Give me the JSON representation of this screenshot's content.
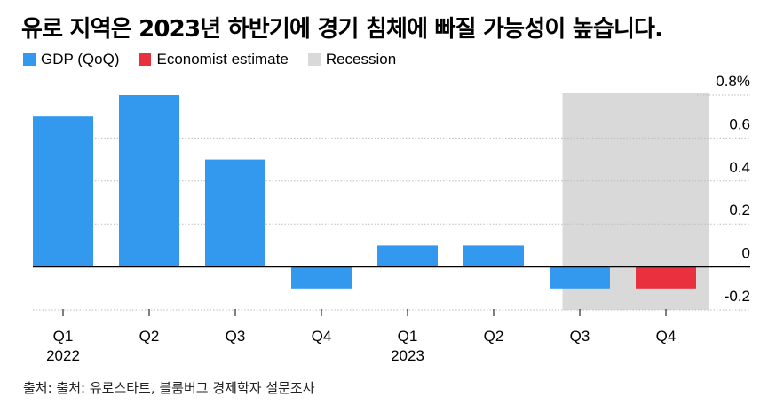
{
  "title": "유로 지역은 2023년 하반기에 경기 침체에 빠질 가능성이 높습니다.",
  "legend": [
    {
      "label": "GDP (QoQ)",
      "color": "#3399ee"
    },
    {
      "label": "Economist estimate",
      "color": "#e8303f"
    },
    {
      "label": "Recession",
      "color": "#d9d9d9"
    }
  ],
  "source": "출처: 출처: 유로스타트, 블룸버그 경제학자 설문조사",
  "chart_data": {
    "type": "bar",
    "categories": [
      "Q1",
      "Q2",
      "Q3",
      "Q4",
      "Q1",
      "Q2",
      "Q3",
      "Q4"
    ],
    "year_labels": [
      {
        "index": 0,
        "label": "2022"
      },
      {
        "index": 4,
        "label": "2023"
      }
    ],
    "series": [
      {
        "name": "GDP (QoQ)",
        "color": "#3399ee",
        "values": [
          0.7,
          0.8,
          0.5,
          -0.1,
          0.1,
          0.1,
          -0.1,
          null
        ]
      },
      {
        "name": "Economist estimate",
        "color": "#e8303f",
        "values": [
          null,
          null,
          null,
          null,
          null,
          null,
          null,
          -0.1
        ]
      }
    ],
    "recession": {
      "start_index": 6,
      "end_index": 7,
      "color": "#d9d9d9"
    },
    "yticks": [
      {
        "value": 0.8,
        "label": "0.8%"
      },
      {
        "value": 0.6,
        "label": "0.6"
      },
      {
        "value": 0.4,
        "label": "0.4"
      },
      {
        "value": 0.2,
        "label": "0.2"
      },
      {
        "value": 0,
        "label": "0"
      },
      {
        "value": -0.2,
        "label": "-0.2"
      }
    ],
    "ylim": [
      -0.2,
      0.8
    ],
    "grid": true,
    "axis_side": "right"
  }
}
